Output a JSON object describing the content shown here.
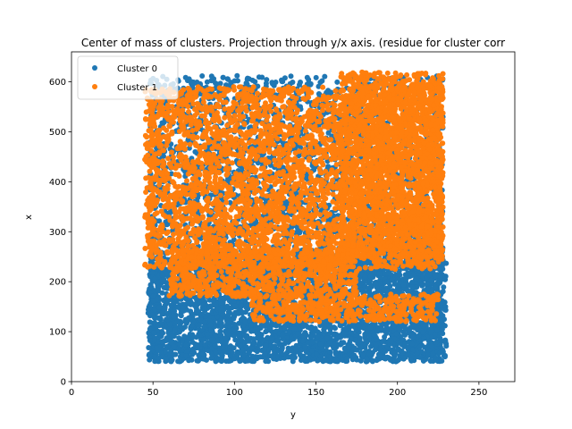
{
  "chart_data": {
    "type": "scatter",
    "title": "Center of mass of clusters. Projection through y/x axis. (residue for cluster corr",
    "xlabel": "y",
    "ylabel": "x",
    "xlim": [
      0,
      272
    ],
    "ylim": [
      0,
      660
    ],
    "xticks": [
      0,
      50,
      100,
      150,
      200,
      250
    ],
    "yticks": [
      0,
      100,
      200,
      300,
      400,
      500,
      600
    ],
    "legend_position": "top-left",
    "grid": false,
    "series": [
      {
        "name": "Cluster 0",
        "color": "#1f77b4",
        "regions": [
          {
            "x": [
              47,
              230
            ],
            "y": [
              40,
              250
            ]
          },
          {
            "x": [
              48,
              228
            ],
            "y": [
              40,
              612
            ]
          },
          {
            "x": [
              170,
              228
            ],
            "y": [
              225,
              300
            ]
          }
        ]
      },
      {
        "name": "Cluster 1",
        "color": "#ff7f0e",
        "regions": [
          {
            "x": [
              45,
              228
            ],
            "y": [
              225,
              590
            ]
          },
          {
            "x": [
              165,
              228
            ],
            "y": [
              250,
              620
            ]
          },
          {
            "x": [
              60,
              175
            ],
            "y": [
              170,
              265
            ]
          },
          {
            "x": [
              110,
              225
            ],
            "y": [
              120,
              175
            ]
          }
        ]
      }
    ]
  }
}
